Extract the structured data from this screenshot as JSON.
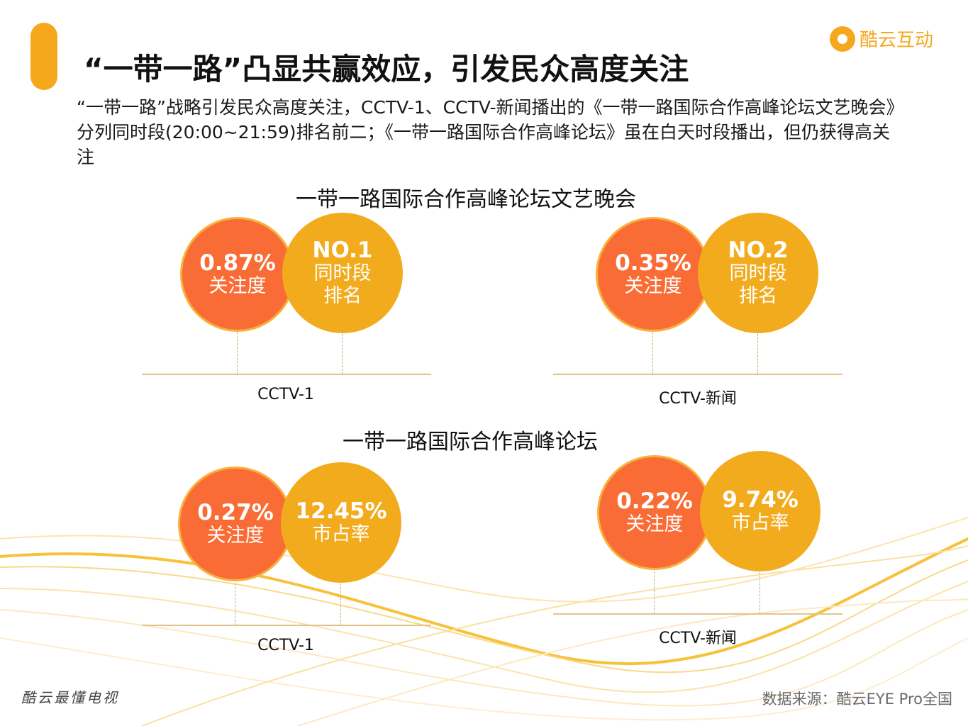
{
  "header": {
    "title": "“一带一路”凸显共赢效应，引发民众高度关注",
    "logo_text": "酷云互动"
  },
  "intro": {
    "text": "“一带一路”战略引发民众高度关注，CCTV-1、CCTV-新闻播出的《一带一路国际合作高峰论坛文艺晚会》分列同时段(20:00~21:59)排名前二；《一带一路国际合作高峰论坛》虽在白天时段播出，但仍获得高关注"
  },
  "section1": {
    "title": "一带一路国际合作高峰论坛文艺晚会",
    "left": {
      "attention_value": "0.87%",
      "attention_label": "关注度",
      "rank_value": "NO.1",
      "rank_label_1": "同时段",
      "rank_label_2": "排名",
      "channel": "CCTV-1"
    },
    "right": {
      "attention_value": "0.35%",
      "attention_label": "关注度",
      "rank_value": "NO.2",
      "rank_label_1": "同时段",
      "rank_label_2": "排名",
      "channel": "CCTV-新闻"
    }
  },
  "section2": {
    "title": "一带一路国际合作高峰论坛",
    "left": {
      "attention_value": "0.27%",
      "attention_label": "关注度",
      "share_value": "12.45%",
      "share_label": "市占率",
      "channel": "CCTV-1"
    },
    "right": {
      "attention_value": "0.22%",
      "attention_label": "关注度",
      "share_value": "9.74%",
      "share_label": "市占率",
      "channel": "CCTV-新闻"
    }
  },
  "footer": {
    "slogan": "酷云最懂电视",
    "source": "数据来源：酷云EYE Pro全国"
  },
  "colors": {
    "accent": "#f5a81c",
    "attention_bubble": "#f96c36",
    "rank_bubble": "#f3ab1e"
  }
}
